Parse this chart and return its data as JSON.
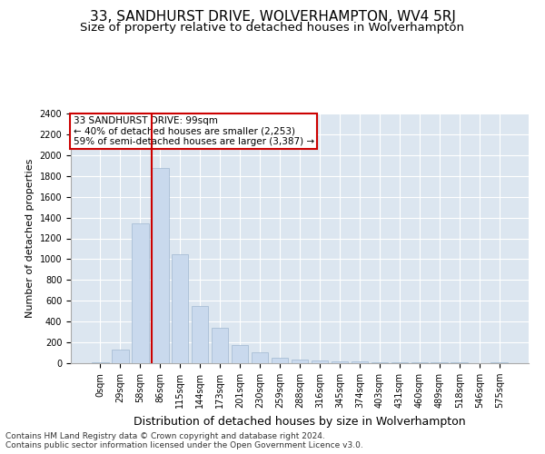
{
  "title": "33, SANDHURST DRIVE, WOLVERHAMPTON, WV4 5RJ",
  "subtitle": "Size of property relative to detached houses in Wolverhampton",
  "xlabel": "Distribution of detached houses by size in Wolverhampton",
  "ylabel": "Number of detached properties",
  "bar_labels": [
    "0sqm",
    "29sqm",
    "58sqm",
    "86sqm",
    "115sqm",
    "144sqm",
    "173sqm",
    "201sqm",
    "230sqm",
    "259sqm",
    "288sqm",
    "316sqm",
    "345sqm",
    "374sqm",
    "403sqm",
    "431sqm",
    "460sqm",
    "489sqm",
    "518sqm",
    "546sqm",
    "575sqm"
  ],
  "bar_values": [
    10,
    130,
    1340,
    1880,
    1050,
    550,
    340,
    175,
    105,
    55,
    35,
    25,
    20,
    15,
    10,
    10,
    8,
    5,
    10,
    3,
    10
  ],
  "bar_color": "#c9d9ed",
  "bar_edge_color": "#a0b8d0",
  "bg_color": "#dce6f0",
  "grid_color": "#ffffff",
  "annotation_title": "33 SANDHURST DRIVE: 99sqm",
  "annotation_line1": "← 40% of detached houses are smaller (2,253)",
  "annotation_line2": "59% of semi-detached houses are larger (3,387) →",
  "annotation_box_color": "#ffffff",
  "annotation_border_color": "#cc0000",
  "red_line_index": 3.07,
  "ylim": [
    0,
    2400
  ],
  "yticks": [
    0,
    200,
    400,
    600,
    800,
    1000,
    1200,
    1400,
    1600,
    1800,
    2000,
    2200,
    2400
  ],
  "footer1": "Contains HM Land Registry data © Crown copyright and database right 2024.",
  "footer2": "Contains public sector information licensed under the Open Government Licence v3.0.",
  "title_fontsize": 11,
  "subtitle_fontsize": 9.5,
  "ylabel_fontsize": 8,
  "xlabel_fontsize": 9,
  "tick_fontsize": 7,
  "annotation_fontsize": 7.5
}
